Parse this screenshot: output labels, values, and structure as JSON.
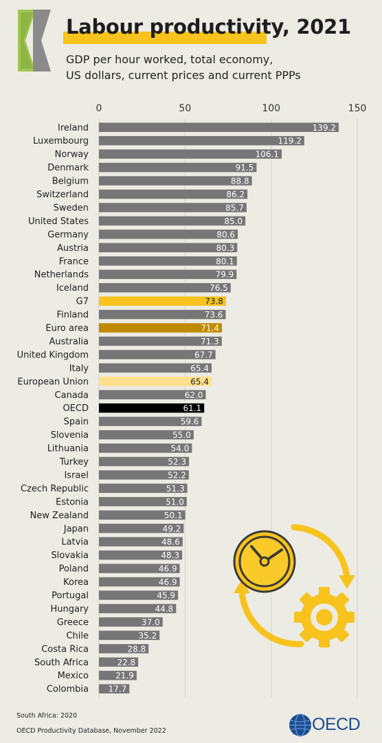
{
  "header": {
    "title": "Labour productivity, 2021",
    "subtitle_lines": [
      "GDP per hour worked, total economy,",
      "US dollars, current prices and current PPPs"
    ]
  },
  "footer": {
    "note": "South Africa: 2020",
    "source": "OECD Productivity Database, November 2022",
    "logo_text": "OECD"
  },
  "colors": {
    "default_bar": "#767676",
    "g7": "#f7c31c",
    "euro_area": "#c08a00",
    "european_union": "#fde08c",
    "oecd": "#000000",
    "accent": "#f7c31c"
  },
  "icons": [
    "chevron-logo-icon",
    "clock-icon",
    "gear-icon",
    "cycle-arrows-icon",
    "oecd-globe-icon"
  ],
  "chart_data": {
    "type": "bar",
    "orientation": "horizontal",
    "xlim": [
      0,
      150
    ],
    "xticks": [
      0,
      50,
      100,
      150
    ],
    "grid": true,
    "categories": [
      "Ireland",
      "Luxembourg",
      "Norway",
      "Denmark",
      "Belgium",
      "Switzerland",
      "Sweden",
      "United States",
      "Germany",
      "Austria",
      "France",
      "Netherlands",
      "Iceland",
      "G7",
      "Finland",
      "Euro area",
      "Australia",
      "United Kingdom",
      "Italy",
      "European Union",
      "Canada",
      "OECD",
      "Spain",
      "Slovenia",
      "Lithuania",
      "Turkey",
      "Israel",
      "Czech Republic",
      "Estonia",
      "New Zealand",
      "Japan",
      "Latvia",
      "Slovakia",
      "Poland",
      "Korea",
      "Portugal",
      "Hungary",
      "Greece",
      "Chile",
      "Costa Rica",
      "South Africa",
      "Mexico",
      "Colombia"
    ],
    "values": [
      139.2,
      119.2,
      106.1,
      91.5,
      88.8,
      86.2,
      85.7,
      85.0,
      80.6,
      80.3,
      80.1,
      79.9,
      76.5,
      73.8,
      73.6,
      71.4,
      71.3,
      67.7,
      65.4,
      65.4,
      62.0,
      61.1,
      59.6,
      55.0,
      54.0,
      52.3,
      52.2,
      51.3,
      51.0,
      50.1,
      49.2,
      48.6,
      48.3,
      46.9,
      46.9,
      45.9,
      44.8,
      37.0,
      35.2,
      28.8,
      22.8,
      21.9,
      17.7
    ],
    "value_labels": [
      "139.2",
      "119.2",
      "106.1",
      "91.5",
      "88.8",
      "86.2",
      "85.7",
      "85.0",
      "80.6",
      "80.3",
      "80.1",
      "79.9",
      "76.5",
      "73.8",
      "73.6",
      "71.4",
      "71.3",
      "67.7",
      "65.4",
      "65.4",
      "62.0",
      "61.1",
      "59.6",
      "55.0",
      "54.0",
      "52.3",
      "52.2",
      "51.3",
      "51.0",
      "50.1",
      "49.2",
      "48.6",
      "48.3",
      "46.9",
      "46.9",
      "45.9",
      "44.8",
      "37.0",
      "35.2",
      "28.8",
      "22.8",
      "21.9",
      "17.7"
    ],
    "highlights": {
      "G7": "g7",
      "Euro area": "euro_area",
      "European Union": "european_union",
      "OECD": "oecd"
    }
  }
}
